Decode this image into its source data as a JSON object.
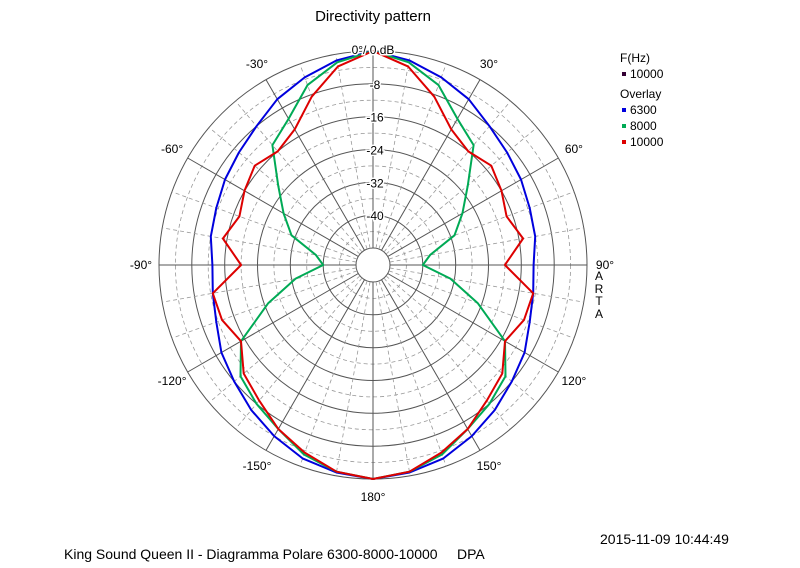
{
  "chart_data": {
    "type": "polar",
    "title": "Directivity pattern",
    "reference_label": "0°/ 0 dB",
    "radial_ticks": [
      "-8",
      "-16",
      "-24",
      "-32",
      "-40"
    ],
    "radial_range_db": [
      -48,
      0
    ],
    "radial_step_db": 8,
    "angle_ticks": [
      {
        "angle": 30,
        "label": "30°"
      },
      {
        "angle": 60,
        "label": "60°"
      },
      {
        "angle": 90,
        "label": "90°"
      },
      {
        "angle": 120,
        "label": "120°"
      },
      {
        "angle": 150,
        "label": "150°"
      },
      {
        "angle": 180,
        "label": "180°"
      },
      {
        "angle": -150,
        "label": "-150°"
      },
      {
        "angle": -120,
        "label": "-120°"
      },
      {
        "angle": -90,
        "label": "-90°"
      },
      {
        "angle": -60,
        "label": "-60°"
      },
      {
        "angle": -30,
        "label": "-30°"
      }
    ],
    "grid": true,
    "legend": {
      "position": "top-right",
      "header": "F(Hz)",
      "header_items": [
        {
          "label": "10000",
          "color": "#330033"
        }
      ],
      "overlay_header": "Overlay"
    },
    "angles_deg": [
      0,
      10,
      20,
      30,
      40,
      50,
      60,
      70,
      80,
      90,
      100,
      110,
      120,
      130,
      140,
      150,
      160,
      170,
      180
    ],
    "series": [
      {
        "name": "6300",
        "color": "#0000dd",
        "values_db": [
          0,
          -1.5,
          -3.5,
          -5.5,
          -8,
          -9.5,
          -10.5,
          -11.5,
          -12,
          -13,
          -12.5,
          -11.5,
          -9.5,
          -8,
          -6,
          -4,
          -2,
          -0.8,
          0
        ]
      },
      {
        "name": "8000",
        "color": "#00aa55",
        "values_db": [
          0,
          -2,
          -5.5,
          -11,
          -14,
          -22,
          -27,
          -31,
          -38,
          -40,
          -33,
          -25,
          -15,
          -10,
          -8,
          -6,
          -3,
          -1,
          0
        ]
      },
      {
        "name": "10000",
        "color": "#dd0000",
        "values_db": [
          0,
          -3,
          -8.5,
          -14,
          -16,
          -14.5,
          -16,
          -17.5,
          -15,
          -20,
          -12.5,
          -13,
          -15,
          -11,
          -9,
          -6,
          -3.5,
          -1,
          0
        ]
      }
    ]
  },
  "brand_letters": [
    "A",
    "R",
    "T",
    "A"
  ],
  "footer": {
    "left": "King Sound Queen II - Diagramma Polare 6300-8000-10000     DPA",
    "right": "2015-11-09  10:44:49"
  }
}
